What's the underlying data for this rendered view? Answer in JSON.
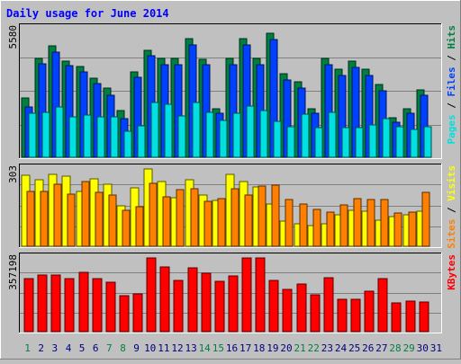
{
  "chart_data": [
    {
      "type": "bar",
      "panel": "pages-files-hits",
      "title": "Daily usage for June 2014",
      "ymax_label": "5580",
      "right_labels": [
        {
          "text": "Pages",
          "color": "#00e0e0"
        },
        {
          "text": " / ",
          "color": "#000000"
        },
        {
          "text": "Files",
          "color": "#0040ff"
        },
        {
          "text": " / ",
          "color": "#000000"
        },
        {
          "text": "Hits",
          "color": "#008040"
        }
      ],
      "categories": [
        "1",
        "2",
        "3",
        "4",
        "5",
        "6",
        "7",
        "8",
        "9",
        "10",
        "11",
        "12",
        "13",
        "14",
        "15",
        "16",
        "17",
        "18",
        "19",
        "20",
        "21",
        "22",
        "23",
        "24",
        "25",
        "26",
        "27",
        "28",
        "29",
        "30",
        "31"
      ],
      "ylim": [
        0,
        5580
      ],
      "series": [
        {
          "name": "Hits",
          "color": "#008040",
          "values": [
            2560,
            4280,
            4820,
            4180,
            3960,
            3440,
            3010,
            2010,
            3720,
            4660,
            4280,
            4280,
            5140,
            4250,
            2120,
            4280,
            5140,
            4300,
            5370,
            3610,
            3270,
            2120,
            4280,
            3820,
            4170,
            3820,
            3160,
            1720,
            2120,
            2940,
            0
          ]
        },
        {
          "name": "Files",
          "color": "#0040ff",
          "values": [
            2180,
            4070,
            4580,
            3970,
            3710,
            3200,
            2700,
            1690,
            3470,
            4400,
            4020,
            4020,
            4870,
            4000,
            1900,
            4020,
            4860,
            4030,
            5110,
            3350,
            3010,
            1900,
            4020,
            3570,
            3910,
            3550,
            2890,
            1530,
            1900,
            2700,
            0
          ]
        },
        {
          "name": "Pages",
          "color": "#00e0e0",
          "values": [
            1910,
            1950,
            2180,
            1750,
            1840,
            1770,
            1750,
            1140,
            1360,
            2370,
            2320,
            1790,
            2380,
            1940,
            1610,
            1910,
            2220,
            2020,
            1570,
            1340,
            1870,
            1270,
            1950,
            1270,
            1290,
            1400,
            1670,
            1340,
            1210,
            1310,
            0
          ]
        }
      ]
    },
    {
      "type": "bar",
      "panel": "visits-sites",
      "ymax_label": "303",
      "right_labels": [
        {
          "text": "Sites",
          "color": "#ff8000"
        },
        {
          "text": " / ",
          "color": "#000000"
        },
        {
          "text": "Visits",
          "color": "#ffff00"
        }
      ],
      "categories": [
        "1",
        "2",
        "3",
        "4",
        "5",
        "6",
        "7",
        "8",
        "9",
        "10",
        "11",
        "12",
        "13",
        "14",
        "15",
        "16",
        "17",
        "18",
        "19",
        "20",
        "21",
        "22",
        "23",
        "24",
        "25",
        "26",
        "27",
        "28",
        "29",
        "30",
        "31"
      ],
      "ylim": [
        0,
        303
      ],
      "series": [
        {
          "name": "Visits",
          "color": "#ffff00",
          "values": [
            280,
            262,
            283,
            274,
            216,
            265,
            242,
            158,
            229,
            303,
            252,
            191,
            262,
            202,
            178,
            283,
            255,
            232,
            167,
            97,
            87,
            80,
            87,
            125,
            141,
            137,
            101,
            117,
            125,
            137,
            0
          ]
        },
        {
          "name": "Sites",
          "color": "#ff8000",
          "values": [
            215,
            216,
            243,
            206,
            252,
            212,
            202,
            142,
            154,
            246,
            194,
            222,
            226,
            177,
            187,
            227,
            201,
            236,
            239,
            182,
            165,
            146,
            134,
            161,
            187,
            183,
            184,
            129,
            133,
            213,
            0
          ]
        }
      ]
    },
    {
      "type": "bar",
      "panel": "kbytes",
      "ymax_label": "357198",
      "right_labels": [
        {
          "text": "KBytes",
          "color": "#ff0000"
        }
      ],
      "categories": [
        "1",
        "2",
        "3",
        "4",
        "5",
        "6",
        "7",
        "8",
        "9",
        "10",
        "11",
        "12",
        "13",
        "14",
        "15",
        "16",
        "17",
        "18",
        "19",
        "20",
        "21",
        "22",
        "23",
        "24",
        "25",
        "26",
        "27",
        "28",
        "29",
        "30",
        "31"
      ],
      "ylim": [
        0,
        357198
      ],
      "series": [
        {
          "name": "KBytes",
          "color": "#ff0000",
          "values": [
            258000,
            275000,
            275000,
            258000,
            286000,
            258000,
            240000,
            175000,
            185000,
            357198,
            315000,
            250000,
            310000,
            283000,
            245000,
            272000,
            357198,
            357198,
            250000,
            206000,
            233000,
            180000,
            262000,
            155000,
            155000,
            195000,
            258000,
            140000,
            147000,
            143000,
            0
          ]
        }
      ]
    }
  ],
  "day_labels": [
    {
      "text": "1",
      "color": "#008040"
    },
    {
      "text": "2",
      "color": "#000080"
    },
    {
      "text": "3",
      "color": "#000080"
    },
    {
      "text": "4",
      "color": "#000080"
    },
    {
      "text": "5",
      "color": "#000080"
    },
    {
      "text": "6",
      "color": "#000080"
    },
    {
      "text": "7",
      "color": "#008040"
    },
    {
      "text": "8",
      "color": "#008040"
    },
    {
      "text": "9",
      "color": "#000080"
    },
    {
      "text": "10",
      "color": "#000080"
    },
    {
      "text": "11",
      "color": "#000080"
    },
    {
      "text": "12",
      "color": "#000080"
    },
    {
      "text": "13",
      "color": "#000080"
    },
    {
      "text": "14",
      "color": "#008040"
    },
    {
      "text": "15",
      "color": "#008040"
    },
    {
      "text": "16",
      "color": "#000080"
    },
    {
      "text": "17",
      "color": "#000080"
    },
    {
      "text": "18",
      "color": "#000080"
    },
    {
      "text": "19",
      "color": "#000080"
    },
    {
      "text": "20",
      "color": "#000080"
    },
    {
      "text": "21",
      "color": "#008040"
    },
    {
      "text": "22",
      "color": "#008040"
    },
    {
      "text": "23",
      "color": "#000080"
    },
    {
      "text": "24",
      "color": "#000080"
    },
    {
      "text": "25",
      "color": "#000080"
    },
    {
      "text": "26",
      "color": "#000080"
    },
    {
      "text": "27",
      "color": "#000080"
    },
    {
      "text": "28",
      "color": "#008040"
    },
    {
      "text": "29",
      "color": "#008040"
    },
    {
      "text": "30",
      "color": "#000080"
    },
    {
      "text": "31",
      "color": "#000080"
    }
  ],
  "colors": {
    "background": "#c0c0c0",
    "title": "#0000ff",
    "grid": "#808080"
  }
}
